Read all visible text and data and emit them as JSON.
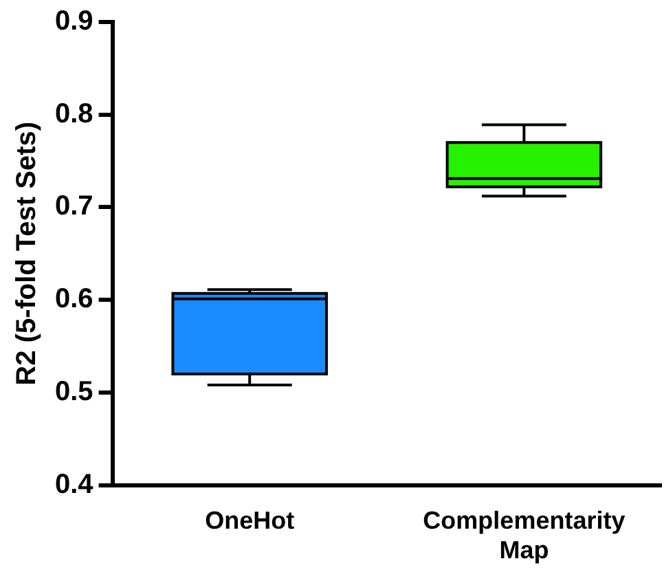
{
  "chart_data": {
    "type": "box",
    "ylabel": "R2 (5-fold Test Sets)",
    "categories": [
      "OneHot",
      "Complementarity Map"
    ],
    "colors": [
      "#1a8cff",
      "#26f200"
    ],
    "boxes": [
      {
        "low": 0.508,
        "q1": 0.52,
        "median": 0.601,
        "q3": 0.607,
        "high": 0.611
      },
      {
        "low": 0.712,
        "q1": 0.722,
        "median": 0.731,
        "q3": 0.77,
        "high": 0.789
      }
    ],
    "ylim": [
      0.4,
      0.9
    ],
    "yticks": [
      0.4,
      0.5,
      0.6,
      0.7,
      0.8,
      0.9
    ],
    "grid": false,
    "legend": false
  }
}
